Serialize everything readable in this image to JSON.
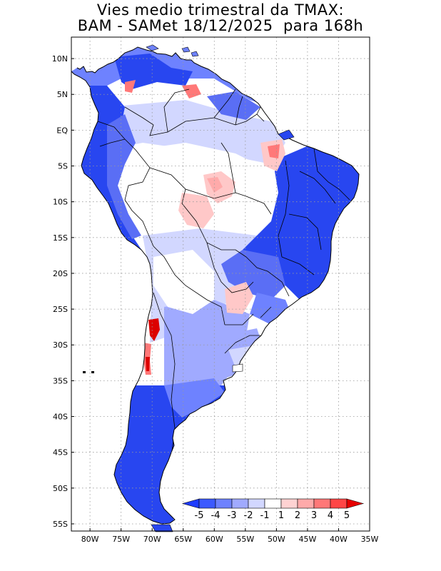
{
  "title": {
    "line1": "Vies medio trimestral da TMAX:",
    "line2": "BAM - SAMet 18/12/2025  para 168h"
  },
  "map": {
    "lon_range": [
      -83,
      -35
    ],
    "lat_range": [
      -56,
      13
    ],
    "lat_ticks": [
      {
        "value": 10,
        "label": "10N"
      },
      {
        "value": 5,
        "label": "5N"
      },
      {
        "value": 0,
        "label": "EQ"
      },
      {
        "value": -5,
        "label": "5S"
      },
      {
        "value": -10,
        "label": "10S"
      },
      {
        "value": -15,
        "label": "15S"
      },
      {
        "value": -20,
        "label": "20S"
      },
      {
        "value": -25,
        "label": "25S"
      },
      {
        "value": -30,
        "label": "30S"
      },
      {
        "value": -35,
        "label": "35S"
      },
      {
        "value": -40,
        "label": "40S"
      },
      {
        "value": -45,
        "label": "45S"
      },
      {
        "value": -50,
        "label": "50S"
      },
      {
        "value": -55,
        "label": "55S"
      }
    ],
    "lon_ticks": [
      {
        "value": -80,
        "label": "80W"
      },
      {
        "value": -75,
        "label": "75W"
      },
      {
        "value": -70,
        "label": "70W"
      },
      {
        "value": -65,
        "label": "65W"
      },
      {
        "value": -60,
        "label": "60W"
      },
      {
        "value": -55,
        "label": "55W"
      },
      {
        "value": -50,
        "label": "50W"
      },
      {
        "value": -45,
        "label": "45W"
      },
      {
        "value": -40,
        "label": "40W"
      },
      {
        "value": -35,
        "label": "35W"
      }
    ]
  },
  "colorbar": {
    "labels": [
      "-5",
      "-4",
      "-3",
      "-2",
      "-1",
      "1",
      "2",
      "3",
      "4",
      "5"
    ],
    "colors": {
      "lt_-5": "#1e3cff",
      "-5_-4": "#3c5aff",
      "-4_-3": "#6e82ff",
      "-3_-2": "#a0aaff",
      "-2_-1": "#d2d7ff",
      "-1_1": "#ffffff",
      "1_2": "#ffd2d2",
      "2_3": "#ffaaaa",
      "3_4": "#ff7878",
      "4_5": "#ff4646",
      "gt_5": "#e60000"
    }
  },
  "palette": {
    "strong_blue": "#2846f0",
    "medium_blue": "#5a6ef5",
    "light_blue": "#a0aaff",
    "pale_blue": "#d2d7ff",
    "land_white": "#ffffff",
    "pale_red": "#ffc8c8",
    "red": "#ff7878",
    "dark_red": "#dc0000",
    "border": "#000000",
    "grid": "#999999"
  }
}
